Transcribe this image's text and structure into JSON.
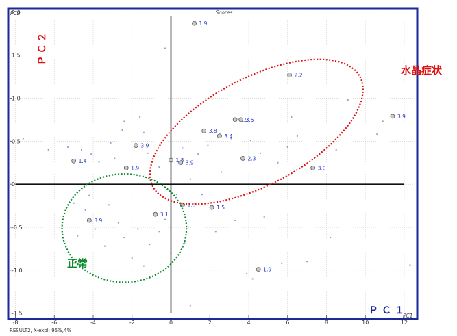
{
  "header": {
    "title": "Scores"
  },
  "footer": {
    "text": "RESULT2, X-expl: 95%,4%"
  },
  "axis_titles": {
    "x_small": "PC1",
    "y_small": "PC2"
  },
  "annotations": {
    "red_label": "水晶症状",
    "green_label": "正常",
    "pc2_label": "ＰＣ２",
    "pc1_label": "ＰＣ１"
  },
  "colors": {
    "frame": "#1a2a9a",
    "red": "#e01010",
    "green": "#0a8a2a",
    "label_blue": "#2233cc",
    "small_point": "#9a9ad8"
  },
  "chart_data": {
    "type": "scatter",
    "title": "Scores",
    "xlabel": "PC1",
    "ylabel": "PC2",
    "xlim": [
      -8.3,
      12.6
    ],
    "ylim": [
      -1.55,
      2.03
    ],
    "xticks": [
      -8,
      -6,
      -4,
      -2,
      0,
      2,
      4,
      6,
      8,
      10,
      12
    ],
    "yticks": [
      2.0,
      1.5,
      1.0,
      0.5,
      0,
      -0.5,
      -1.0,
      -1.5
    ],
    "grid": true,
    "labeled_points": [
      {
        "x": 1.2,
        "y": 1.87,
        "label": "1.9"
      },
      {
        "x": 6.1,
        "y": 1.27,
        "label": "2.2"
      },
      {
        "x": 11.4,
        "y": 0.79,
        "label": "3.9"
      },
      {
        "x": 3.3,
        "y": 0.75,
        "label": "3.9"
      },
      {
        "x": 3.6,
        "y": 0.75,
        "label": "3.5"
      },
      {
        "x": 1.7,
        "y": 0.62,
        "label": "3.8"
      },
      {
        "x": 2.5,
        "y": 0.56,
        "label": "3.4"
      },
      {
        "x": -1.8,
        "y": 0.45,
        "label": "3.9"
      },
      {
        "x": 3.7,
        "y": 0.3,
        "label": "2.3"
      },
      {
        "x": 0.0,
        "y": 0.28,
        "label": "1.8"
      },
      {
        "x": 0.5,
        "y": 0.25,
        "label": "3.9"
      },
      {
        "x": -5.0,
        "y": 0.27,
        "label": "1.4"
      },
      {
        "x": -2.3,
        "y": 0.19,
        "label": "1.9"
      },
      {
        "x": 7.3,
        "y": 0.19,
        "label": "3.0"
      },
      {
        "x": 0.6,
        "y": -0.24,
        "label": "1.8"
      },
      {
        "x": 2.1,
        "y": -0.27,
        "label": "1.5"
      },
      {
        "x": -0.8,
        "y": -0.35,
        "label": "3.1"
      },
      {
        "x": -4.2,
        "y": -0.42,
        "label": "3.9"
      },
      {
        "x": 4.5,
        "y": -0.99,
        "label": "1.9"
      }
    ],
    "background_points": [
      [
        -7.6,
        0.53
      ],
      [
        -5.3,
        0.43
      ],
      [
        -4.6,
        0.4
      ],
      [
        -4.1,
        0.35
      ],
      [
        -3.7,
        0.26
      ],
      [
        -3.1,
        0.48
      ],
      [
        -2.9,
        0.3
      ],
      [
        -2.5,
        0.63
      ],
      [
        -2.4,
        0.73
      ],
      [
        -1.6,
        0.78
      ],
      [
        -1.2,
        0.36
      ],
      [
        -0.6,
        0.2
      ],
      [
        -0.3,
        1.58
      ],
      [
        -1.4,
        0.6
      ],
      [
        0.6,
        0.42
      ],
      [
        1.0,
        0.06
      ],
      [
        1.4,
        0.35
      ],
      [
        1.9,
        0.45
      ],
      [
        2.6,
        0.14
      ],
      [
        3.1,
        0.53
      ],
      [
        4.1,
        0.51
      ],
      [
        4.6,
        0.36
      ],
      [
        5.5,
        0.25
      ],
      [
        6.0,
        0.43
      ],
      [
        6.2,
        0.78
      ],
      [
        6.5,
        0.56
      ],
      [
        8.5,
        0.4
      ],
      [
        9.1,
        0.98
      ],
      [
        10.6,
        0.58
      ],
      [
        10.9,
        0.73
      ],
      [
        -5.0,
        -0.22
      ],
      [
        -4.8,
        -0.6
      ],
      [
        -4.4,
        -0.3
      ],
      [
        -3.9,
        -0.52
      ],
      [
        -3.4,
        -0.72
      ],
      [
        -3.2,
        -0.24
      ],
      [
        -2.7,
        -0.45
      ],
      [
        -2.4,
        -0.62
      ],
      [
        -2.0,
        -0.86
      ],
      [
        -1.7,
        -0.52
      ],
      [
        -1.4,
        -0.95
      ],
      [
        -1.1,
        -0.7
      ],
      [
        -1.1,
        -1.08
      ],
      [
        -0.6,
        -0.55
      ],
      [
        -0.3,
        -0.41
      ],
      [
        0.0,
        -0.8
      ],
      [
        0.3,
        -0.12
      ],
      [
        0.7,
        -0.68
      ],
      [
        1.0,
        -1.41
      ],
      [
        1.6,
        -0.12
      ],
      [
        2.3,
        -0.55
      ],
      [
        3.3,
        -0.42
      ],
      [
        3.9,
        -1.04
      ],
      [
        4.2,
        -1.1
      ],
      [
        4.8,
        -0.38
      ],
      [
        5.7,
        -0.92
      ],
      [
        7.0,
        -0.9
      ],
      [
        8.2,
        -0.62
      ],
      [
        -4.2,
        -0.13
      ],
      [
        -6.3,
        0.4
      ],
      [
        12.3,
        -0.94
      ]
    ],
    "ellipses": [
      {
        "name": "red",
        "cx": 4.4,
        "cy": 0.61,
        "rx": 9.0,
        "ry": 0.4,
        "angle_deg": -28
      },
      {
        "name": "green",
        "cx": -2.4,
        "cy": -0.51,
        "rx": 3.2,
        "ry": 0.63,
        "angle_deg": 0
      }
    ]
  }
}
